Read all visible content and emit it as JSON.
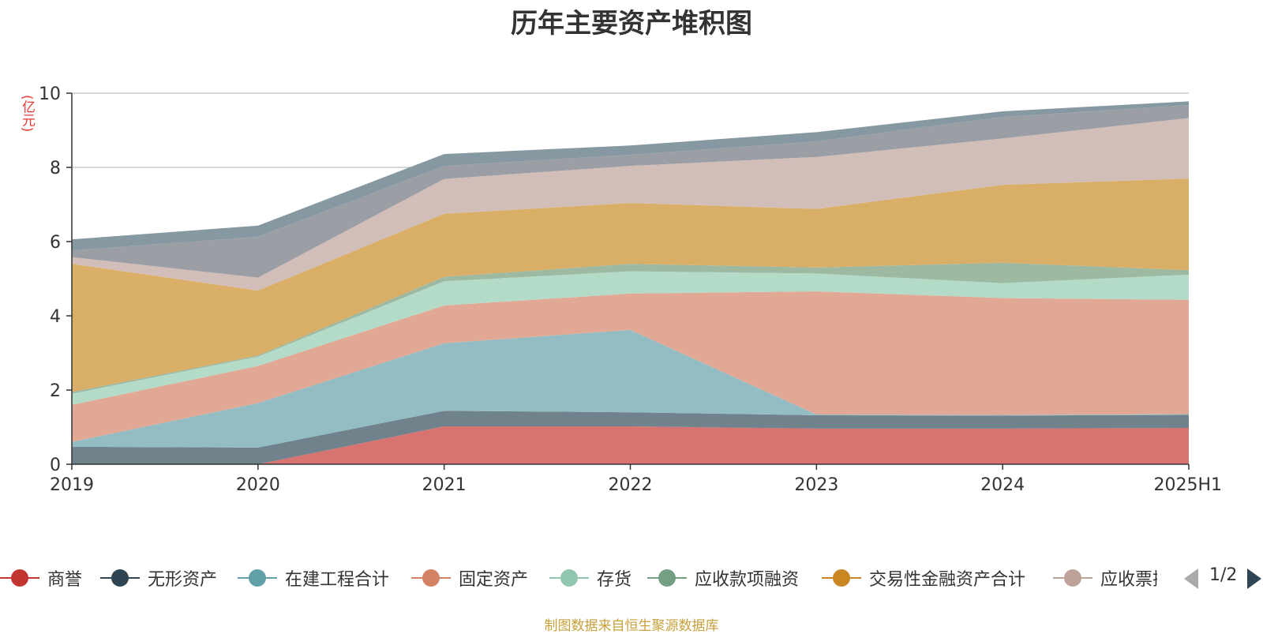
{
  "title": "历年主要资产堆积图",
  "unit_label": "(亿元)",
  "source_note": "制图数据来自恒生聚源数据库",
  "legend_pager": {
    "text": "1/2"
  },
  "chart_data": {
    "type": "area",
    "stacked": true,
    "title": "历年主要资产堆积图",
    "ylabel": "(亿元)",
    "xlabel": "",
    "ylim": [
      0,
      10
    ],
    "yticks": [
      0,
      2,
      4,
      6,
      8,
      10
    ],
    "grid": true,
    "legend_position": "bottom",
    "categories": [
      "2019",
      "2020",
      "2021",
      "2022",
      "2023",
      "2024",
      "2025H1"
    ],
    "series": [
      {
        "name": "商誉",
        "color": "#c23531",
        "fill": "#d6706e",
        "values": [
          0,
          0,
          1.02,
          1.02,
          0.96,
          0.96,
          0.98
        ]
      },
      {
        "name": "无形资产",
        "color": "#2f4554",
        "fill": "#6d7f89",
        "values": [
          0.47,
          0.45,
          0.42,
          0.38,
          0.36,
          0.35,
          0.35
        ]
      },
      {
        "name": "在建工程合计",
        "color": "#61a0a8",
        "fill": "#91bcc2",
        "values": [
          0.13,
          1.2,
          1.82,
          2.22,
          0.02,
          0.02,
          0.02
        ]
      },
      {
        "name": "固定资产",
        "color": "#d48265",
        "fill": "#e0a793",
        "values": [
          1.0,
          1.0,
          1.02,
          0.98,
          3.32,
          3.15,
          3.08
        ]
      },
      {
        "name": "存货",
        "color": "#91c7ae",
        "fill": "#b2dac7",
        "values": [
          0.3,
          0.25,
          0.65,
          0.6,
          0.48,
          0.4,
          0.68
        ]
      },
      {
        "name": "应收款项融资",
        "color": "#749f83",
        "fill": "#9bb89f",
        "values": [
          0.05,
          0.03,
          0.12,
          0.2,
          0.16,
          0.55,
          0.12
        ]
      },
      {
        "name": "交易性金融资产合计",
        "color": "#ca8622",
        "fill": "#d8ac64",
        "values": [
          3.45,
          1.75,
          1.7,
          1.64,
          1.58,
          2.1,
          2.47
        ]
      },
      {
        "name": "应收票据",
        "color": "#bda29a",
        "fill": "#d1bdb7",
        "values": [
          0.18,
          0.35,
          0.94,
          1.0,
          1.4,
          1.25,
          1.63
        ]
      },
      {
        "name": "",
        "color": "#8f949b",
        "fill": "#9a9ca3",
        "values": [
          0.18,
          1.1,
          0.35,
          0.3,
          0.42,
          0.58,
          0.35
        ]
      },
      {
        "name": "",
        "color": "#7f939c",
        "fill": "#84969f",
        "values": [
          0.3,
          0.3,
          0.32,
          0.25,
          0.25,
          0.15,
          0.1
        ]
      }
    ]
  }
}
